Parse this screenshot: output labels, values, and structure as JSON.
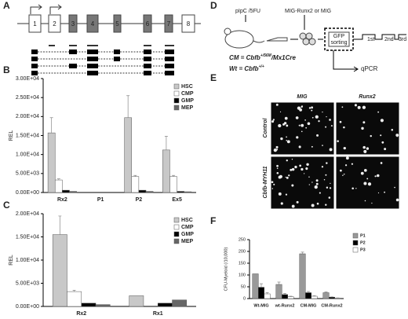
{
  "panels": [
    "A",
    "B",
    "C",
    "D",
    "E",
    "F"
  ],
  "panel_a": {
    "exons": [
      "1",
      "2",
      "3",
      "4",
      "5",
      "6",
      "7",
      "8"
    ]
  },
  "panel_d": {
    "treatment": "pIpC /5FU",
    "virus": "MIG-Runx2 or MIG",
    "cm_prefix": "CM = ",
    "cm_gene": "Cbfb",
    "cm_allele": "+/56M",
    "cm_suffix": "/Mx1Cre",
    "wt_prefix": "Wt = ",
    "wt_gene": "Cbfb",
    "wt_allele": "+/+",
    "sort_line1": "GFP",
    "sort_line2": "sorting",
    "rounds": [
      "1st",
      "2nd",
      "3rd"
    ],
    "readout": "qPCR"
  },
  "panel_e": {
    "columns": [
      "MIG",
      "Runx2"
    ],
    "rows": [
      "Control",
      "Cbfb-MYH11"
    ]
  },
  "chart_data": [
    {
      "type": "bar",
      "ylabel": "REL",
      "categories": [
        "Rx2",
        "P1",
        "P2",
        "Ex5"
      ],
      "series": [
        {
          "name": "HSC",
          "color": "#c8c8c8",
          "values": [
            15700,
            0,
            19700,
            11200
          ],
          "errors": [
            4000,
            null,
            5800,
            3600
          ]
        },
        {
          "name": "CMP",
          "color": "#ffffff",
          "values": [
            3300,
            0,
            4200,
            4200
          ],
          "errors": [
            300,
            null,
            300,
            300
          ]
        },
        {
          "name": "GMP",
          "color": "#000000",
          "values": [
            600,
            0,
            600,
            300
          ],
          "errors": [
            null,
            null,
            null,
            null
          ]
        },
        {
          "name": "MEP",
          "color": "#666666",
          "values": [
            300,
            0,
            300,
            200
          ],
          "errors": [
            null,
            null,
            null,
            null
          ]
        }
      ],
      "ylim": [
        0,
        30000
      ],
      "yticks": [
        {
          "value": 0,
          "label": "0.00E+00"
        },
        {
          "value": 5000,
          "label": "5.00E+03"
        },
        {
          "value": 10000,
          "label": "1.00E+04"
        },
        {
          "value": 15000,
          "label": "1.50E+04"
        },
        {
          "value": 20000,
          "label": "2.00E+04"
        },
        {
          "value": 25000,
          "label": "2.50E+04"
        },
        {
          "value": 30000,
          "label": "3.00E+04"
        }
      ],
      "legend": "upper right"
    },
    {
      "type": "bar",
      "ylabel": "REL",
      "categories": [
        "Rx2",
        "Rx1"
      ],
      "series": [
        {
          "name": "HSC",
          "color": "#c8c8c8",
          "values": [
            15500,
            2300
          ],
          "errors": [
            4000,
            null
          ]
        },
        {
          "name": "CMP",
          "color": "#ffffff",
          "values": [
            3200,
            0
          ],
          "errors": [
            300,
            null
          ]
        },
        {
          "name": "GMP",
          "color": "#000000",
          "values": [
            700,
            700
          ],
          "errors": [
            null,
            null
          ]
        },
        {
          "name": "MEP",
          "color": "#666666",
          "values": [
            400,
            1400
          ],
          "errors": [
            null,
            null
          ]
        }
      ],
      "ylim": [
        0,
        20000
      ],
      "yticks": [
        {
          "value": 0,
          "label": "0.00E+00"
        },
        {
          "value": 5000,
          "label": "5.00E+03"
        },
        {
          "value": 10000,
          "label": "1.00E+04"
        },
        {
          "value": 15000,
          "label": "1.50E+04"
        },
        {
          "value": 20000,
          "label": "2.00E+04"
        }
      ],
      "legend": "upper right"
    },
    {
      "type": "bar",
      "ylabel": "CFU-Myeloid (/10,000)",
      "categories": [
        "Wt-MIG",
        "wt-Runx2",
        "CM-MIG",
        "CM-Runx2"
      ],
      "series": [
        {
          "name": "P1",
          "color": "#999999",
          "values": [
            105,
            60,
            190,
            25
          ],
          "errors": [
            null,
            10,
            7,
            3
          ]
        },
        {
          "name": "P2",
          "color": "#000000",
          "values": [
            48,
            17,
            25,
            6
          ],
          "errors": [
            15,
            5,
            5,
            1
          ]
        },
        {
          "name": "P3",
          "color": "#ffffff",
          "values": [
            20,
            8,
            10,
            2
          ],
          "errors": [
            5,
            2,
            2,
            1
          ]
        }
      ],
      "ylim": [
        0,
        250
      ],
      "yticks": [
        0,
        50,
        100,
        150,
        200,
        250
      ],
      "legend": "upper right"
    }
  ]
}
